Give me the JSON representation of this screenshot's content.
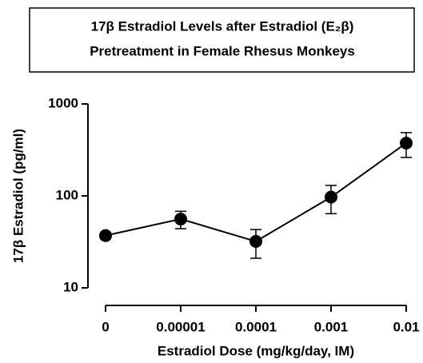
{
  "chart_data": {
    "type": "line",
    "title": [
      "17β Estradiol Levels after  Estradiol (E₂β)",
      "Pretreatment in Female Rhesus Monkeys"
    ],
    "x_label": "Estradiol Dose (mg/kg/day, IM)",
    "y_label": "17β  Estradiol (pg/ml)",
    "categories": [
      "0",
      "0.00001",
      "0.0001",
      "0.001",
      "0.01"
    ],
    "series": [
      {
        "color": "#000000",
        "values": [
          37,
          56,
          32,
          97,
          375
        ],
        "errors": [
          3,
          12,
          11,
          33,
          113
        ]
      }
    ],
    "ylim": [
      10,
      1000
    ],
    "yticks": [
      10,
      100,
      1000
    ],
    "yscale": "log",
    "grid": false
  }
}
